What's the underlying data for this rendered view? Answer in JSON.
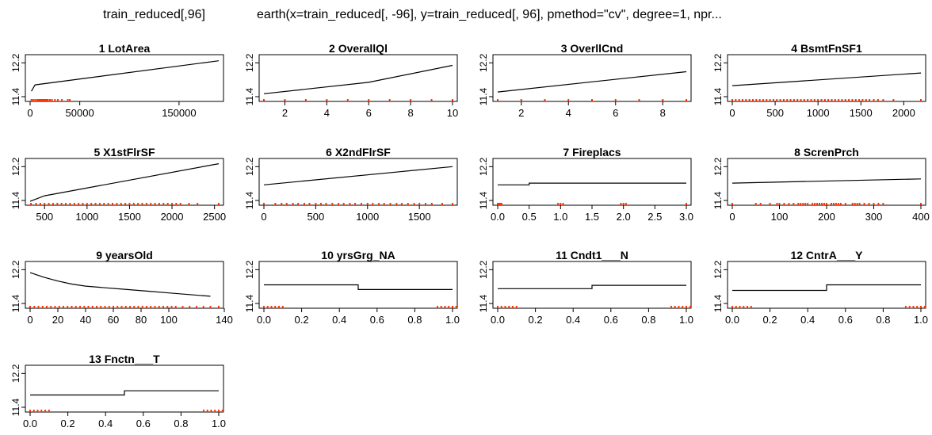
{
  "header": {
    "left_title": "train_reduced[,96]",
    "right_title": "earth(x=train_reduced[, -96], y=train_reduced[, 96], pmethod=\"cv\", degree=1, npr..."
  },
  "style": {
    "line_color": "#000000",
    "rug_color": "#ff3300",
    "frame_color": "#000000"
  },
  "chart_data": [
    {
      "type": "line",
      "title": "1  LotArea",
      "xlim": [
        0,
        190000
      ],
      "ylim": [
        11.4,
        12.3
      ],
      "xticks": [
        {
          "v": 0,
          "l": "0"
        },
        {
          "v": 50000,
          "l": "50000"
        },
        {
          "v": 150000,
          "l": "150000"
        }
      ],
      "yticks": [
        {
          "v": 11.4,
          "l": "11.4"
        },
        {
          "v": 12.2,
          "l": "12.2"
        }
      ],
      "x": [
        1300,
        5000,
        190000
      ],
      "y": [
        11.53,
        11.68,
        12.25
      ],
      "rug": [
        1300,
        3000,
        5000,
        7000,
        8000,
        9000,
        10000,
        11000,
        12000,
        13000,
        14000,
        15000,
        16000,
        17000,
        18000,
        20000,
        22000,
        25000,
        28000,
        32000,
        38000,
        40000
      ]
    },
    {
      "type": "line",
      "title": "2  OverallQl",
      "xlim": [
        1,
        10
      ],
      "ylim": [
        11.4,
        12.3
      ],
      "xticks": [
        {
          "v": 2,
          "l": "2"
        },
        {
          "v": 4,
          "l": "4"
        },
        {
          "v": 6,
          "l": "6"
        },
        {
          "v": 8,
          "l": "8"
        },
        {
          "v": 10,
          "l": "10"
        }
      ],
      "yticks": [
        {
          "v": 11.4,
          "l": "11.4"
        },
        {
          "v": 12.2,
          "l": "12.2"
        }
      ],
      "x": [
        1,
        6,
        10
      ],
      "y": [
        11.47,
        11.74,
        12.14
      ],
      "rug": [
        1,
        2,
        3,
        4,
        5,
        6,
        7,
        8,
        9,
        10
      ]
    },
    {
      "type": "line",
      "title": "3  OverllCnd",
      "xlim": [
        1,
        9
      ],
      "ylim": [
        11.4,
        12.3
      ],
      "xticks": [
        {
          "v": 2,
          "l": "2"
        },
        {
          "v": 4,
          "l": "4"
        },
        {
          "v": 6,
          "l": "6"
        },
        {
          "v": 8,
          "l": "8"
        }
      ],
      "yticks": [
        {
          "v": 11.4,
          "l": "11.4"
        },
        {
          "v": 12.2,
          "l": "12.2"
        }
      ],
      "x": [
        1,
        9
      ],
      "y": [
        11.51,
        11.99
      ],
      "rug": [
        1,
        2,
        3,
        4,
        5,
        6,
        7,
        8,
        9
      ]
    },
    {
      "type": "line",
      "title": "4  BsmtFnSF1",
      "xlim": [
        0,
        2200
      ],
      "ylim": [
        11.4,
        12.3
      ],
      "xticks": [
        {
          "v": 0,
          "l": "0"
        },
        {
          "v": 500,
          "l": "500"
        },
        {
          "v": 1000,
          "l": "1000"
        },
        {
          "v": 1500,
          "l": "1500"
        },
        {
          "v": 2000,
          "l": "2000"
        }
      ],
      "yticks": [
        {
          "v": 11.4,
          "l": "11.4"
        },
        {
          "v": 12.2,
          "l": "12.2"
        }
      ],
      "x": [
        0,
        2200
      ],
      "y": [
        11.66,
        11.96
      ],
      "rug": [
        0,
        40,
        80,
        120,
        160,
        200,
        240,
        280,
        320,
        360,
        400,
        440,
        480,
        520,
        560,
        600,
        640,
        680,
        720,
        760,
        800,
        840,
        880,
        920,
        960,
        1000,
        1040,
        1080,
        1120,
        1160,
        1200,
        1240,
        1280,
        1320,
        1360,
        1400,
        1440,
        1480,
        1520,
        1560,
        1600,
        1650,
        1700,
        1760,
        1880,
        2200
      ]
    },
    {
      "type": "line",
      "title": "5  X1stFlrSF",
      "xlim": [
        330,
        2550
      ],
      "ylim": [
        11.4,
        12.3
      ],
      "xticks": [
        {
          "v": 500,
          "l": "500"
        },
        {
          "v": 1000,
          "l": "1000"
        },
        {
          "v": 1500,
          "l": "1500"
        },
        {
          "v": 2000,
          "l": "2000"
        },
        {
          "v": 2500,
          "l": "2500"
        }
      ],
      "yticks": [
        {
          "v": 11.4,
          "l": "11.4"
        },
        {
          "v": 12.2,
          "l": "12.2"
        }
      ],
      "x": [
        330,
        500,
        2550
      ],
      "y": [
        11.38,
        11.51,
        12.27
      ],
      "rug": [
        340,
        400,
        450,
        500,
        550,
        600,
        650,
        700,
        750,
        800,
        850,
        900,
        950,
        1000,
        1050,
        1100,
        1150,
        1200,
        1250,
        1300,
        1350,
        1400,
        1450,
        1500,
        1550,
        1600,
        1650,
        1700,
        1750,
        1800,
        1850,
        1900,
        1950,
        2000,
        2050,
        2100,
        2200,
        2300,
        2550
      ]
    },
    {
      "type": "line",
      "title": "6  X2ndFlrSF",
      "xlim": [
        0,
        1820
      ],
      "ylim": [
        11.4,
        12.3
      ],
      "xticks": [
        {
          "v": 0,
          "l": "0"
        },
        {
          "v": 500,
          "l": "500"
        },
        {
          "v": 1000,
          "l": "1000"
        },
        {
          "v": 1500,
          "l": "1500"
        }
      ],
      "yticks": [
        {
          "v": 11.4,
          "l": "11.4"
        },
        {
          "v": 12.2,
          "l": "12.2"
        }
      ],
      "x": [
        0,
        1820
      ],
      "y": [
        11.77,
        12.2
      ],
      "rug": [
        0,
        110,
        170,
        220,
        280,
        330,
        390,
        440,
        500,
        550,
        600,
        660,
        720,
        770,
        830,
        880,
        940,
        1000,
        1050,
        1110,
        1160,
        1220,
        1280,
        1330,
        1390,
        1450,
        1500,
        1560,
        1620,
        1720,
        1820
      ]
    },
    {
      "type": "line",
      "title": "7  Fireplacs",
      "xlim": [
        0,
        3
      ],
      "ylim": [
        11.4,
        12.3
      ],
      "xticks": [
        {
          "v": 0,
          "l": "0.0"
        },
        {
          "v": 0.5,
          "l": "0.5"
        },
        {
          "v": 1,
          "l": "1.0"
        },
        {
          "v": 1.5,
          "l": "1.5"
        },
        {
          "v": 2,
          "l": "2.0"
        },
        {
          "v": 2.5,
          "l": "2.5"
        },
        {
          "v": 3,
          "l": "3.0"
        }
      ],
      "yticks": [
        {
          "v": 11.4,
          "l": "11.4"
        },
        {
          "v": 12.2,
          "l": "12.2"
        }
      ],
      "x": [
        0,
        0.5,
        0.5,
        3
      ],
      "y": [
        11.77,
        11.77,
        11.81,
        11.81
      ],
      "rug": [
        0,
        0.02,
        0.04,
        0.06,
        0.96,
        1,
        1.04,
        1.96,
        2,
        2.04,
        3
      ]
    },
    {
      "type": "line",
      "title": "8  ScrenPrch",
      "xlim": [
        0,
        400
      ],
      "ylim": [
        11.4,
        12.3
      ],
      "xticks": [
        {
          "v": 0,
          "l": "0"
        },
        {
          "v": 100,
          "l": "100"
        },
        {
          "v": 200,
          "l": "200"
        },
        {
          "v": 300,
          "l": "300"
        },
        {
          "v": 400,
          "l": "400"
        }
      ],
      "yticks": [
        {
          "v": 11.4,
          "l": "11.4"
        },
        {
          "v": 12.2,
          "l": "12.2"
        }
      ],
      "x": [
        0,
        400
      ],
      "y": [
        11.81,
        11.91
      ],
      "rug": [
        0,
        50,
        60,
        80,
        95,
        100,
        110,
        120,
        130,
        140,
        145,
        150,
        155,
        160,
        170,
        175,
        180,
        185,
        190,
        195,
        200,
        210,
        215,
        220,
        225,
        230,
        240,
        255,
        260,
        265,
        270,
        280,
        290,
        300,
        310,
        320,
        400
      ]
    },
    {
      "type": "line",
      "title": "9  yearsOld",
      "xlim": [
        0,
        136
      ],
      "ylim": [
        11.4,
        12.3
      ],
      "xticks": [
        {
          "v": 0,
          "l": "0"
        },
        {
          "v": 20,
          "l": "20"
        },
        {
          "v": 40,
          "l": "40"
        },
        {
          "v": 60,
          "l": "60"
        },
        {
          "v": 80,
          "l": "80"
        },
        {
          "v": 100,
          "l": "100"
        },
        {
          "v": 140,
          "l": "140"
        }
      ],
      "yticks": [
        {
          "v": 11.4,
          "l": "11.4"
        },
        {
          "v": 12.2,
          "l": "12.2"
        }
      ],
      "x": [
        0,
        10,
        20,
        30,
        40,
        55,
        70,
        85,
        100,
        115,
        130
      ],
      "y": [
        12.13,
        12.02,
        11.93,
        11.86,
        11.81,
        11.77,
        11.73,
        11.69,
        11.65,
        11.61,
        11.57
      ],
      "rug": [
        0,
        3,
        6,
        9,
        12,
        15,
        18,
        21,
        24,
        27,
        30,
        33,
        36,
        39,
        42,
        45,
        48,
        51,
        54,
        57,
        60,
        63,
        66,
        69,
        72,
        75,
        78,
        81,
        84,
        87,
        90,
        93,
        96,
        99,
        102,
        105,
        110,
        115,
        120,
        125,
        130,
        136
      ]
    },
    {
      "type": "line",
      "title": "10  yrsGrg_NA",
      "xlim": [
        0,
        1
      ],
      "ylim": [
        11.4,
        12.3
      ],
      "xticks": [
        {
          "v": 0,
          "l": "0.0"
        },
        {
          "v": 0.2,
          "l": "0.2"
        },
        {
          "v": 0.4,
          "l": "0.4"
        },
        {
          "v": 0.6,
          "l": "0.6"
        },
        {
          "v": 0.8,
          "l": "0.8"
        },
        {
          "v": 1,
          "l": "1.0"
        }
      ],
      "yticks": [
        {
          "v": 11.4,
          "l": "11.4"
        },
        {
          "v": 12.2,
          "l": "12.2"
        }
      ],
      "x": [
        0,
        0.5,
        0.5,
        1
      ],
      "y": [
        11.84,
        11.84,
        11.73,
        11.73
      ],
      "rug": [
        0,
        0.02,
        0.04,
        0.06,
        0.08,
        0.1,
        0.92,
        0.94,
        0.96,
        0.98,
        1,
        1.02,
        1.04,
        1.06,
        1.08,
        1.1
      ]
    },
    {
      "type": "line",
      "title": "11  Cndt1___N",
      "xlim": [
        0,
        1
      ],
      "ylim": [
        11.4,
        12.3
      ],
      "xticks": [
        {
          "v": 0,
          "l": "0.0"
        },
        {
          "v": 0.2,
          "l": "0.2"
        },
        {
          "v": 0.4,
          "l": "0.4"
        },
        {
          "v": 0.6,
          "l": "0.6"
        },
        {
          "v": 0.8,
          "l": "0.8"
        },
        {
          "v": 1,
          "l": "1.0"
        }
      ],
      "yticks": [
        {
          "v": 11.4,
          "l": "11.4"
        },
        {
          "v": 12.2,
          "l": "12.2"
        }
      ],
      "x": [
        0,
        0.5,
        0.5,
        1
      ],
      "y": [
        11.75,
        11.75,
        11.83,
        11.83
      ],
      "rug": [
        0,
        0.02,
        0.04,
        0.06,
        0.08,
        0.1,
        0.92,
        0.94,
        0.96,
        0.98,
        1,
        1.02,
        1.04,
        1.06,
        1.08,
        1.1
      ]
    },
    {
      "type": "line",
      "title": "12  CntrA___Y",
      "xlim": [
        0,
        1
      ],
      "ylim": [
        11.4,
        12.3
      ],
      "xticks": [
        {
          "v": 0,
          "l": "0.0"
        },
        {
          "v": 0.2,
          "l": "0.2"
        },
        {
          "v": 0.4,
          "l": "0.4"
        },
        {
          "v": 0.6,
          "l": "0.6"
        },
        {
          "v": 0.8,
          "l": "0.8"
        },
        {
          "v": 1,
          "l": "1.0"
        }
      ],
      "yticks": [
        {
          "v": 11.4,
          "l": "11.4"
        },
        {
          "v": 12.2,
          "l": "12.2"
        }
      ],
      "x": [
        0,
        0.5,
        0.5,
        1
      ],
      "y": [
        11.71,
        11.71,
        11.84,
        11.84
      ],
      "rug": [
        0,
        0.02,
        0.04,
        0.06,
        0.08,
        0.1,
        0.92,
        0.94,
        0.96,
        0.98,
        1,
        1.02,
        1.04,
        1.06,
        1.08,
        1.1
      ]
    },
    {
      "type": "line",
      "title": "13  Fnctn___T",
      "xlim": [
        0,
        1
      ],
      "ylim": [
        11.4,
        12.3
      ],
      "xticks": [
        {
          "v": 0,
          "l": "0.0"
        },
        {
          "v": 0.2,
          "l": "0.2"
        },
        {
          "v": 0.4,
          "l": "0.4"
        },
        {
          "v": 0.6,
          "l": "0.6"
        },
        {
          "v": 0.8,
          "l": "0.8"
        },
        {
          "v": 1,
          "l": "1.0"
        }
      ],
      "yticks": [
        {
          "v": 11.4,
          "l": "11.4"
        },
        {
          "v": 12.2,
          "l": "12.2"
        }
      ],
      "x": [
        0,
        0.5,
        0.5,
        1
      ],
      "y": [
        11.69,
        11.69,
        11.79,
        11.79
      ],
      "rug": [
        0,
        0.02,
        0.04,
        0.06,
        0.08,
        0.1,
        0.92,
        0.94,
        0.96,
        0.98,
        1,
        1.02,
        1.04,
        1.06,
        1.08,
        1.1
      ]
    }
  ]
}
